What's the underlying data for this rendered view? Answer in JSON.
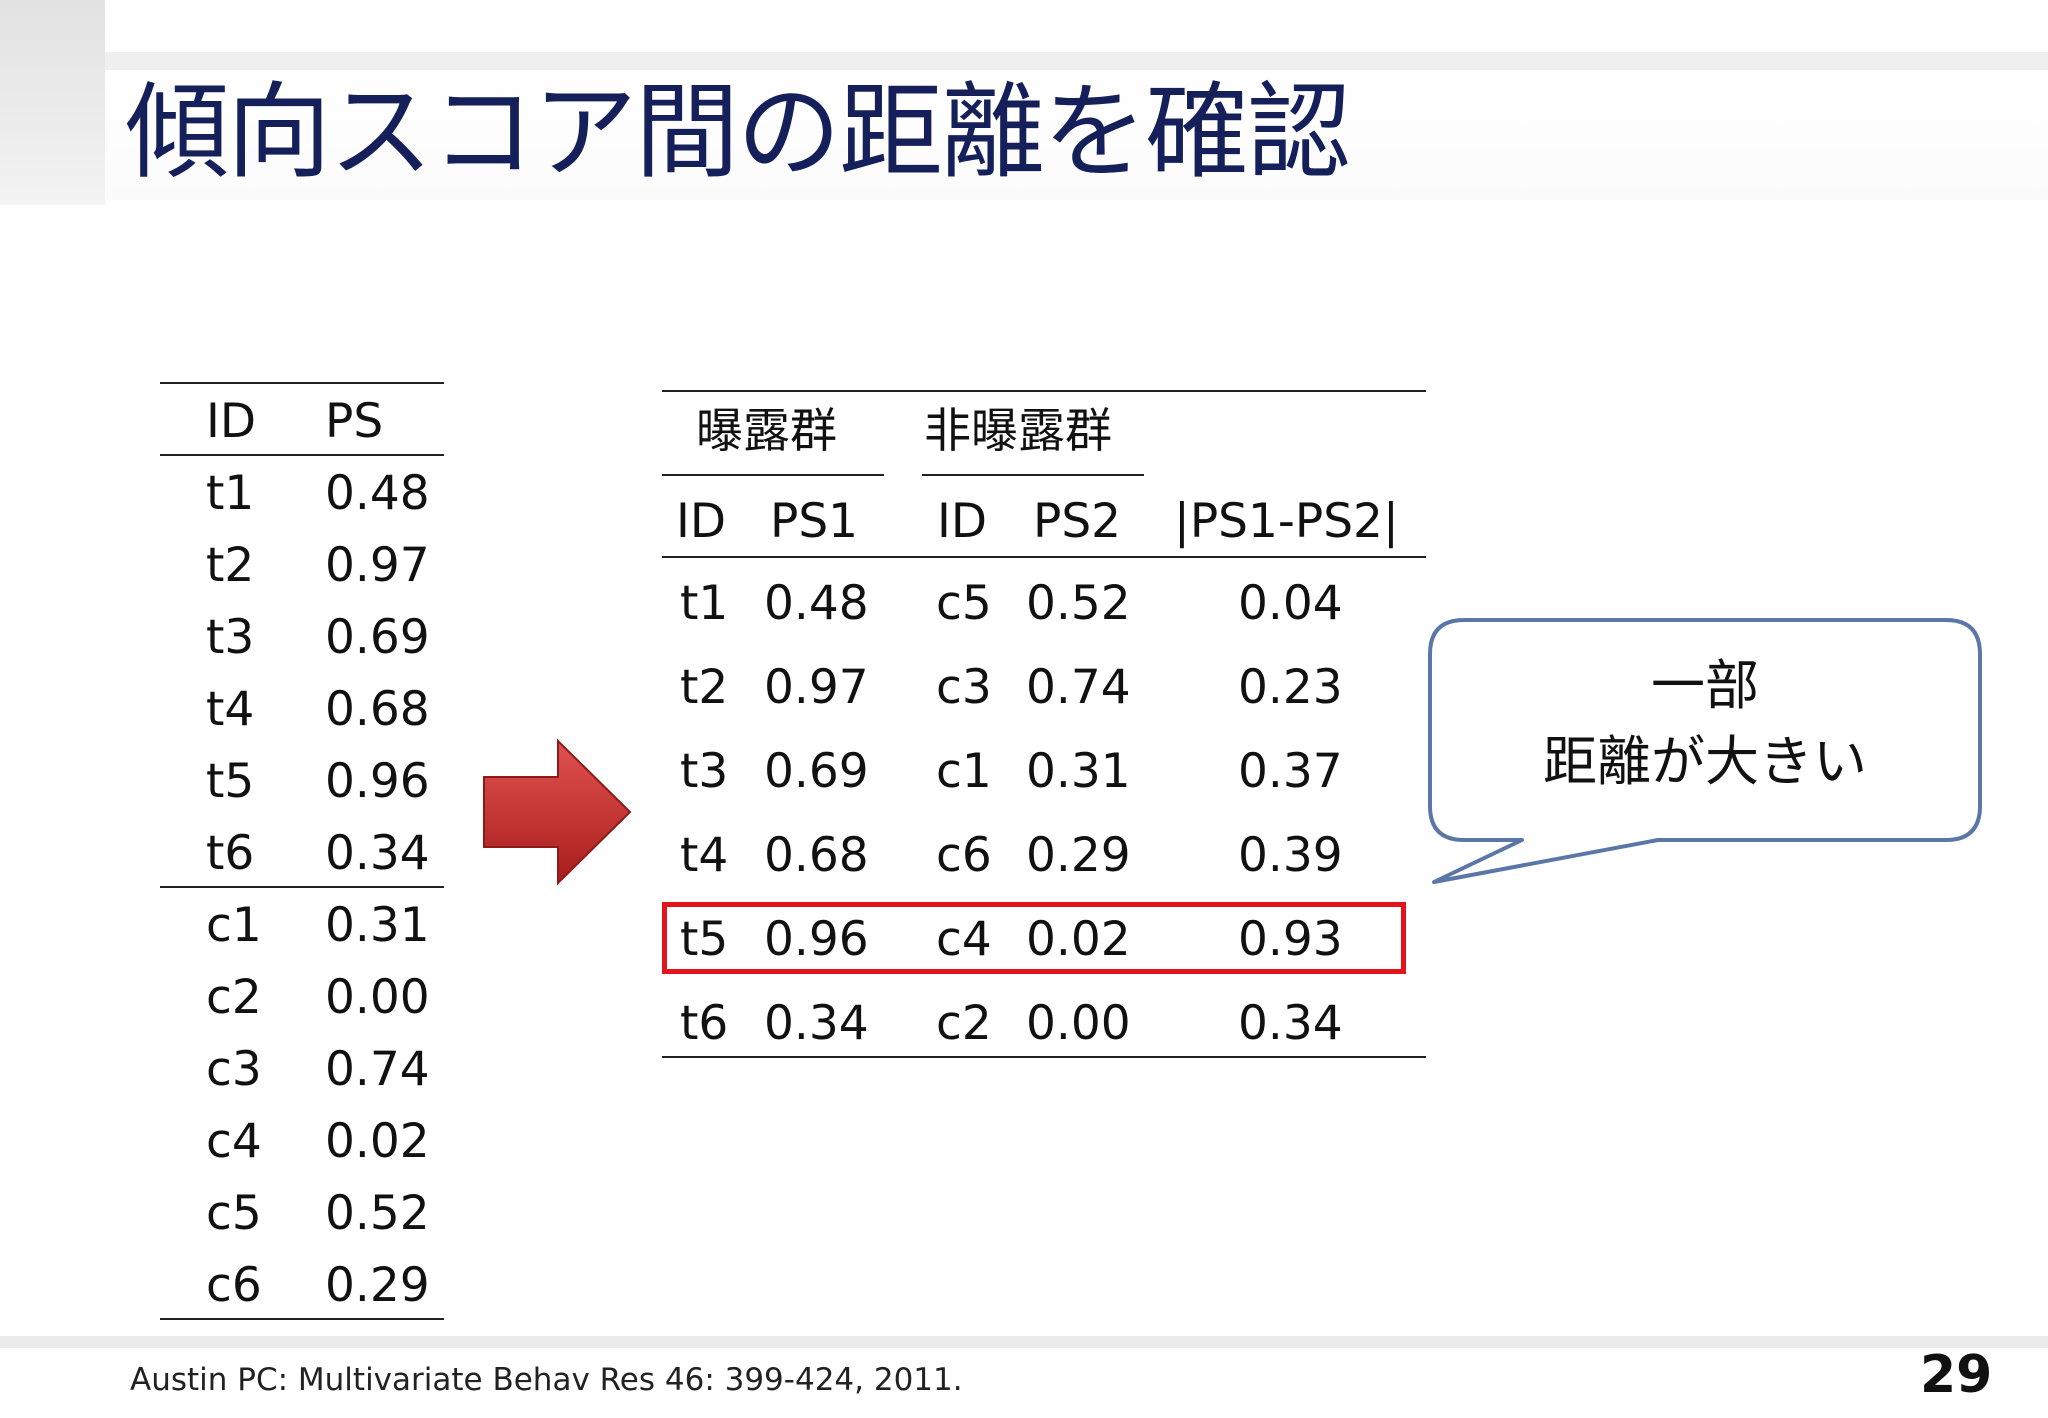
{
  "title": "傾向スコア間の距離を確認",
  "left_table": {
    "headers": [
      "ID",
      "PS"
    ],
    "rows": [
      [
        "t1",
        "0.48"
      ],
      [
        "t2",
        "0.97"
      ],
      [
        "t3",
        "0.69"
      ],
      [
        "t4",
        "0.68"
      ],
      [
        "t5",
        "0.96"
      ],
      [
        "t6",
        "0.34"
      ],
      [
        "c1",
        "0.31"
      ],
      [
        "c2",
        "0.00"
      ],
      [
        "c3",
        "0.74"
      ],
      [
        "c4",
        "0.02"
      ],
      [
        "c5",
        "0.52"
      ],
      [
        "c6",
        "0.29"
      ]
    ]
  },
  "right_table": {
    "group_exposed": "曝露群",
    "group_unexposed": "非曝露群",
    "headers": [
      "ID",
      "PS1",
      "ID",
      "PS2",
      "|PS1-PS2|"
    ],
    "rows": [
      [
        "t1",
        "0.48",
        "c5",
        "0.52",
        "0.04"
      ],
      [
        "t2",
        "0.97",
        "c3",
        "0.74",
        "0.23"
      ],
      [
        "t3",
        "0.69",
        "c1",
        "0.31",
        "0.37"
      ],
      [
        "t4",
        "0.68",
        "c6",
        "0.29",
        "0.39"
      ],
      [
        "t5",
        "0.96",
        "c4",
        "0.02",
        "0.93"
      ],
      [
        "t6",
        "0.34",
        "c2",
        "0.00",
        "0.34"
      ]
    ],
    "highlighted_row_index": 4
  },
  "callout": {
    "line1": "一部",
    "line2": "距離が大きい"
  },
  "citation": "Austin PC: Multivariate Behav Res 46: 399-424, 2011.",
  "page_number": "29",
  "colors": {
    "title": "#15205a",
    "highlight_border": "#e3141b",
    "arrow": "#c8302e",
    "callout_border": "#5b77a8"
  }
}
